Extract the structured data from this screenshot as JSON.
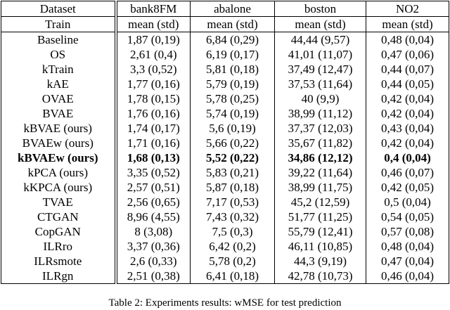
{
  "header": [
    "Dataset",
    "bank8FM",
    "abalone",
    "boston",
    "NO2"
  ],
  "subheader": [
    "Train",
    "mean (std)",
    "mean (std)",
    "mean (std)",
    "mean (std)"
  ],
  "rows": [
    [
      "Baseline",
      "1,87 (0,19)",
      "6,84 (0,29)",
      "44,44 (9,57)",
      "0,48 (0,04)"
    ],
    [
      "OS",
      "2,61 (0,4)",
      "6,19 (0,17)",
      "41,01 (11,07)",
      "0,47 (0,06)"
    ],
    [
      "kTrain",
      "3,3 (0,52)",
      "5,81 (0,18)",
      "37,49 (12,47)",
      "0,44 (0,07)"
    ],
    [
      "kAE",
      "1,77 (0,16)",
      "5,79 (0,19)",
      "37,53 (11,64)",
      "0,44 (0,05)"
    ],
    [
      "OVAE",
      "1,78 (0,15)",
      "5,78 (0,25)",
      "40 (9,9)",
      "0,42 (0,04)"
    ],
    [
      "BVAE",
      "1,76 (0,16)",
      "5,74 (0,19)",
      "38,99 (11,12)",
      "0,42 (0,04)"
    ],
    [
      "kBVAE (ours)",
      "1,74 (0,17)",
      "5,6 (0,19)",
      "37,37 (12,03)",
      "0,43 (0,04)"
    ],
    [
      "BVAEw (ours)",
      "1,71 (0,16)",
      "5,66 (0,22)",
      "35,67 (11,82)",
      "0,42 (0,04)"
    ],
    [
      "kBVAEw (ours)",
      "1,68 (0,13)",
      "5,52 (0,22)",
      "34,86 (12,12)",
      "0,4 (0,04)"
    ],
    [
      "kPCA (ours)",
      "3,35 (0,52)",
      "5,83 (0,21)",
      "39,22 (11,64)",
      "0,46 (0,07)"
    ],
    [
      "kKPCA (ours)",
      "2,57 (0,51)",
      "5,87 (0,18)",
      "38,99 (11,75)",
      "0,42 (0,05)"
    ],
    [
      "TVAE",
      "2,56 (0,65)",
      "7,17 (0,53)",
      "45,2 (12,59)",
      "0,5 (0,04)"
    ],
    [
      "CTGAN",
      "8,96 (4,55)",
      "7,43 (0,32)",
      "51,77 (11,25)",
      "0,54 (0,05)"
    ],
    [
      "CopGAN",
      "8 (3,08)",
      "7,5 (0,3)",
      "55,79 (12,41)",
      "0,57 (0,08)"
    ],
    [
      "ILRro",
      "3,37 (0,36)",
      "6,42 (0,2)",
      "46,11 (10,85)",
      "0,48 (0,04)"
    ],
    [
      "ILRsmote",
      "2,6 (0,33)",
      "5,78 (0,2)",
      "44,3 (9,19)",
      "0,47 (0,04)"
    ],
    [
      "ILRgn",
      "2,51 (0,38)",
      "6,41 (0,18)",
      "42,78 (10,73)",
      "0,46 (0,04)"
    ]
  ],
  "bold_row": 8,
  "caption": "Table 2: Experiments results: wMSE for test prediction"
}
